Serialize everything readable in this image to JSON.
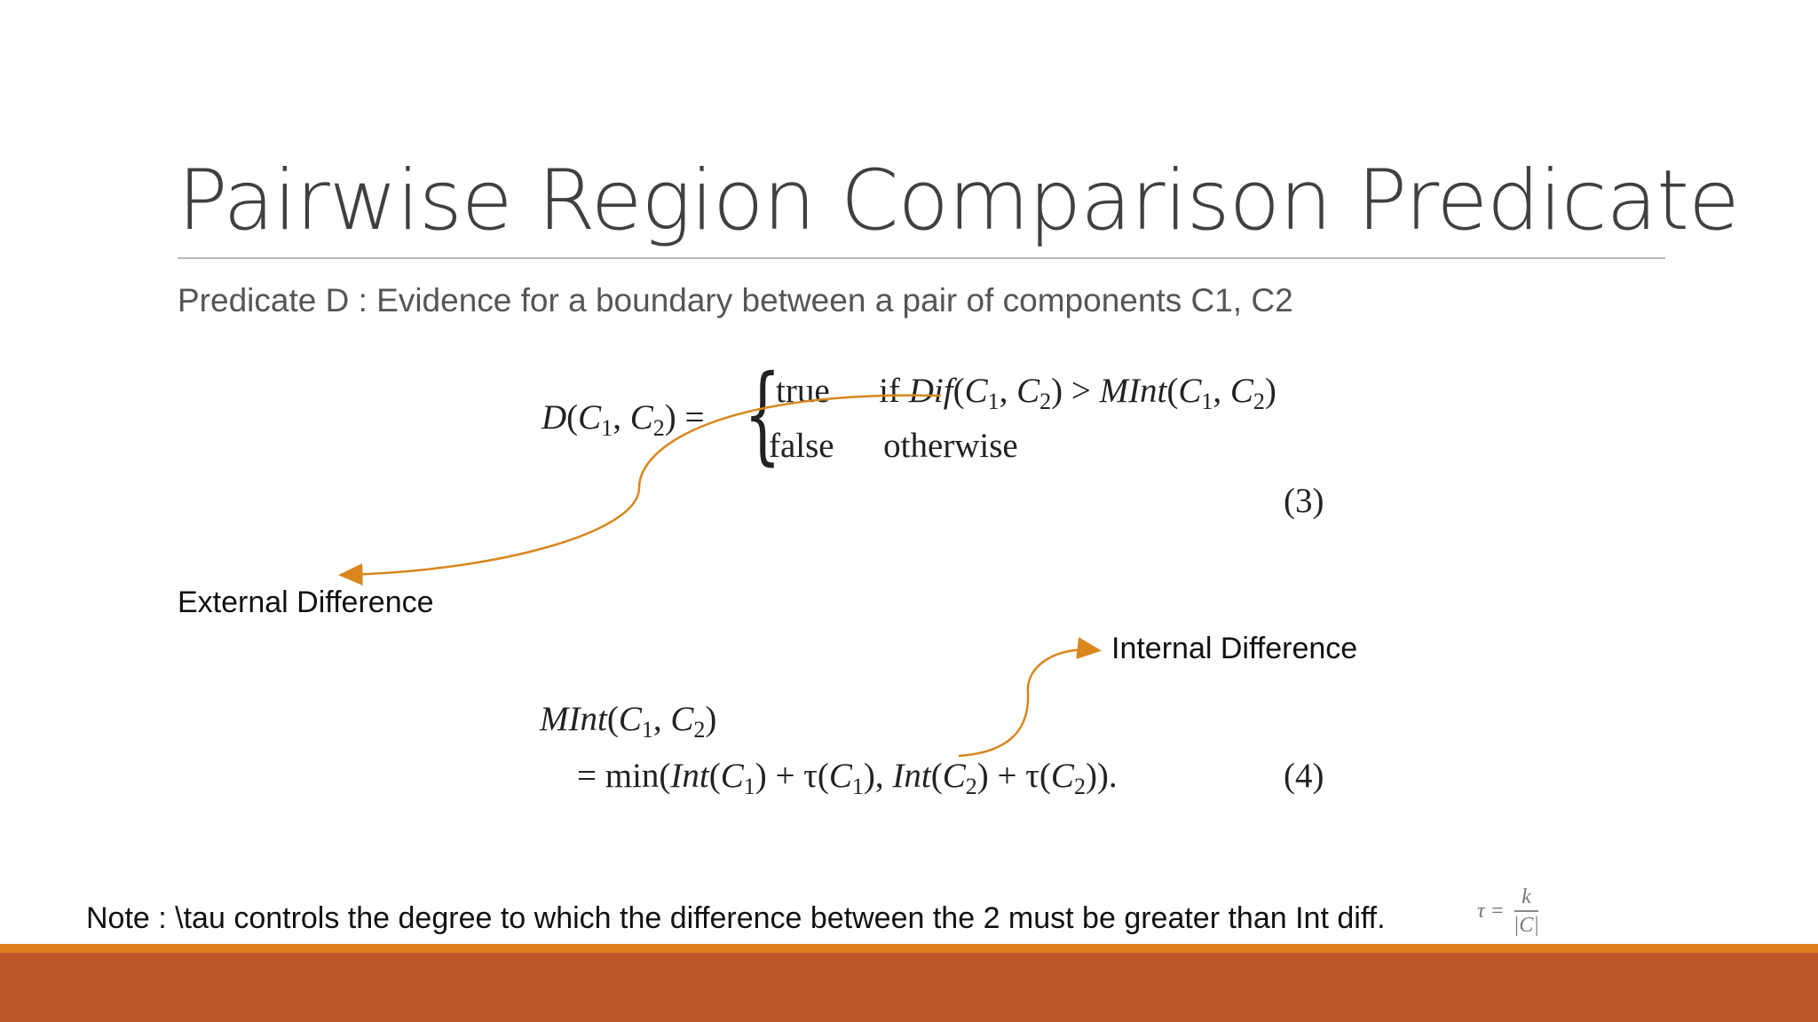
{
  "slide": {
    "title": "Pairwise Region Comparison Predicate",
    "subtitle": "Predicate D : Evidence for a boundary between a pair of components C1, C2"
  },
  "equation3": {
    "lhs_D": "D",
    "lhs_open": "(",
    "lhs_C": "C",
    "sub1": "1",
    "lhs_comma": ", ",
    "lhs_C2": "C",
    "sub2": "2",
    "lhs_close": ") =",
    "case1_value": "true",
    "case1_if": "if ",
    "case1_dif": "Dif",
    "case1_args_open": "(",
    "case1_C": "C",
    "case1_comma": ", ",
    "case1_C2": "C",
    "case1_close": ") > ",
    "case1_mint": "MInt",
    "case1_args2_open": "(",
    "case1_args2_comma": ", ",
    "case1_args2_close": ")",
    "case2_value": "false",
    "case2_condition": "otherwise",
    "number": "(3)"
  },
  "equation4": {
    "mint": "MInt",
    "open": "(",
    "C": "C",
    "sub1": "1",
    "comma": ", ",
    "sub2": "2",
    "close": ")",
    "line2_eq_min": "= min(",
    "int": "Int",
    "plus_tau": ") + τ(",
    "close_comma": "),  ",
    "tail": ")).",
    "number": "(4)"
  },
  "annotations": {
    "external_label": "External Difference",
    "internal_label": "Internal Difference",
    "note": "Note : \\tau controls the degree to which the difference between the 2 must be greater than Int diff.",
    "tau_lhs": "τ =",
    "tau_num": "k",
    "tau_den": "|C|"
  },
  "colors": {
    "accent_orange": "#e07e1c",
    "footer_rust": "#bc5628",
    "arrow": "#d9861c"
  }
}
